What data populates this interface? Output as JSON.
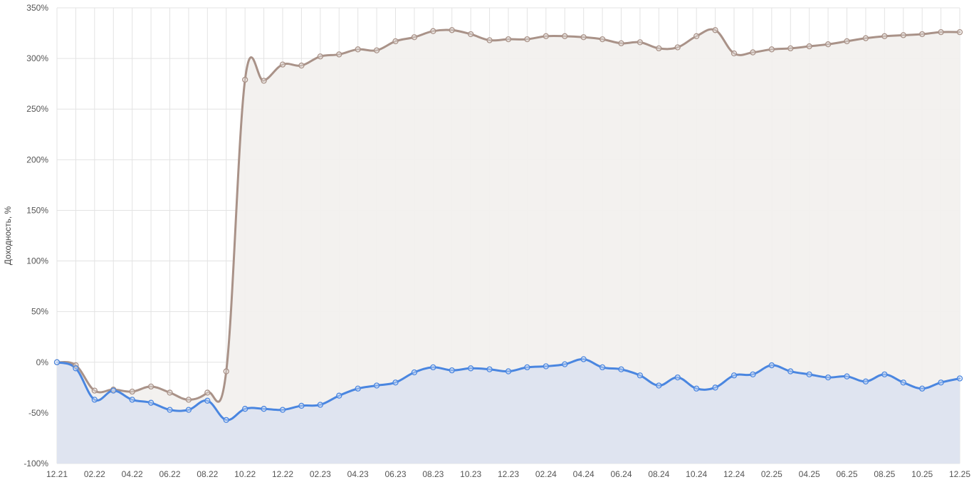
{
  "chart_data": {
    "type": "area",
    "title": "",
    "xlabel": "",
    "ylabel": "Доходность, %",
    "ylim": [
      -100,
      350
    ],
    "y_ticks": [
      -100,
      -50,
      0,
      50,
      100,
      150,
      200,
      250,
      300,
      350
    ],
    "y_tick_labels": [
      "-100%",
      "-50%",
      "0%",
      "50%",
      "100%",
      "150%",
      "200%",
      "250%",
      "300%",
      "350%"
    ],
    "x_tick_labels": [
      "12.21",
      "02.22",
      "04.22",
      "06.22",
      "08.22",
      "10.22",
      "12.22",
      "02.23",
      "04.23",
      "06.23",
      "08.23",
      "10.23",
      "12.23",
      "02.24",
      "04.24",
      "06.24",
      "08.24",
      "10.24",
      "12.24",
      "02.25",
      "04.25",
      "06.25",
      "08.25",
      "10.25",
      "12.25"
    ],
    "x": [
      "12.21",
      "01.22",
      "02.22",
      "03.22",
      "04.22",
      "05.22",
      "06.22",
      "07.22",
      "08.22",
      "09.22",
      "10.22",
      "11.22",
      "12.22",
      "01.23",
      "02.23",
      "03.23",
      "04.23",
      "05.23",
      "06.23",
      "07.23",
      "08.23",
      "09.23",
      "10.23",
      "11.23",
      "12.23",
      "01.24",
      "02.24",
      "03.24",
      "04.24",
      "05.24",
      "06.24",
      "07.24",
      "08.24",
      "09.24",
      "10.24",
      "11.24",
      "12.24",
      "01.25",
      "02.25",
      "03.25",
      "04.25",
      "05.25",
      "06.25",
      "07.25",
      "08.25",
      "09.25",
      "10.25",
      "11.25",
      "12.25"
    ],
    "grid": true,
    "series": [
      {
        "color": "#a99288",
        "fill": "#f2f0ee",
        "values": [
          0,
          -3,
          -28,
          -27,
          -29,
          -24,
          -30,
          -37,
          -30,
          -9,
          279,
          278,
          294,
          293,
          302,
          304,
          309,
          308,
          317,
          321,
          327,
          328,
          324,
          318,
          319,
          319,
          322,
          322,
          321,
          319,
          315,
          316,
          310,
          311,
          322,
          328,
          305,
          306,
          309,
          310,
          312,
          314,
          317,
          320,
          322,
          323,
          324,
          326,
          326
        ]
      },
      {
        "color": "#4a86e0",
        "fill": "#dde3ef",
        "values": [
          0,
          -6,
          -37,
          -28,
          -37,
          -40,
          -47,
          -47,
          -38,
          -57,
          -46,
          -46,
          -47,
          -43,
          -42,
          -33,
          -26,
          -23,
          -20,
          -10,
          -5,
          -8,
          -6,
          -7,
          -9,
          -5,
          -4,
          -2,
          3,
          -5,
          -7,
          -13,
          -23,
          -15,
          -26,
          -25,
          -13,
          -12,
          -3,
          -9,
          -12,
          -15,
          -14,
          -19,
          -12,
          -20,
          -26,
          -20,
          -16
        ]
      }
    ]
  }
}
